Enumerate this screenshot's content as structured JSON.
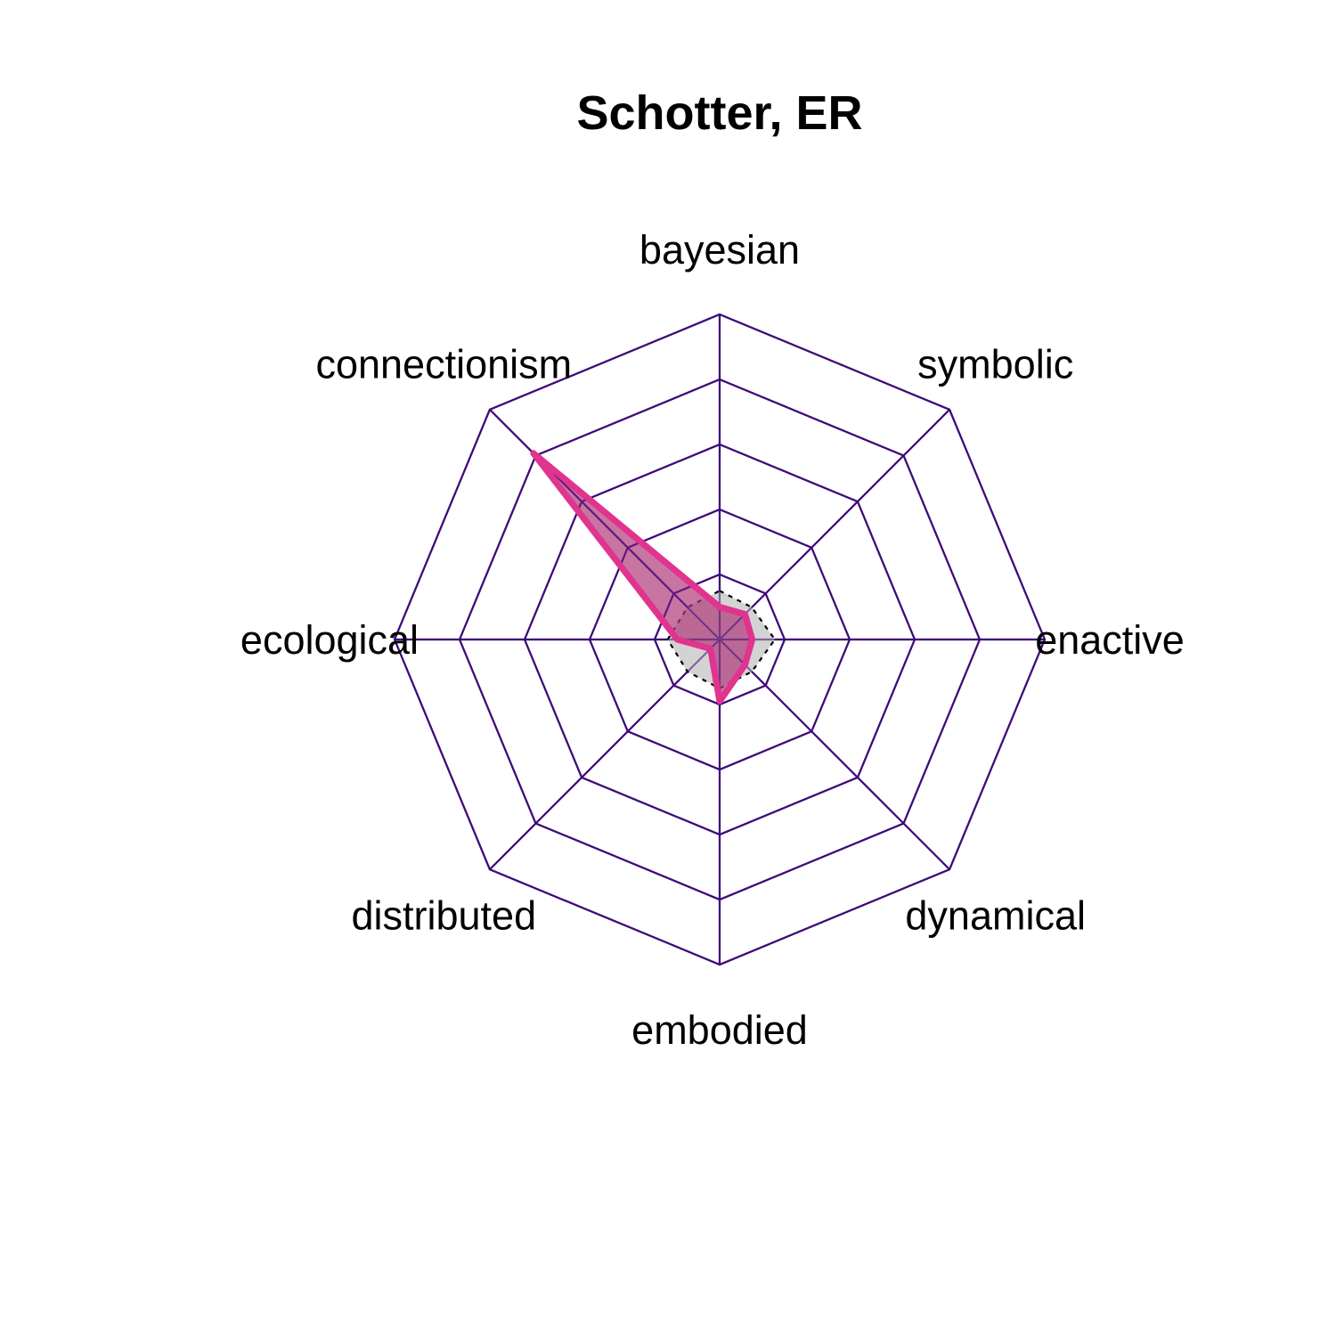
{
  "chart_data": {
    "type": "radar",
    "title": "Schotter, ER",
    "axes": [
      "bayesian",
      "symbolic",
      "enactive",
      "dynamical",
      "embodied",
      "distributed",
      "ecological",
      "connectionism"
    ],
    "grid_levels": 5,
    "range": [
      0,
      1
    ],
    "series": [
      {
        "values": [
          0.1,
          0.11,
          0.1,
          0.11,
          0.19,
          0.04,
          0.13,
          0.81
        ]
      },
      {
        "values": [
          0.15,
          0.14,
          0.17,
          0.14,
          0.15,
          0.14,
          0.16,
          0.14
        ]
      }
    ],
    "colors": {
      "grid": "#3f0a7a",
      "series_line": "#e0348f",
      "series_fill": "#b03a7a",
      "reference_fill": "#d3d3d3",
      "reference_line": "#000000"
    }
  }
}
